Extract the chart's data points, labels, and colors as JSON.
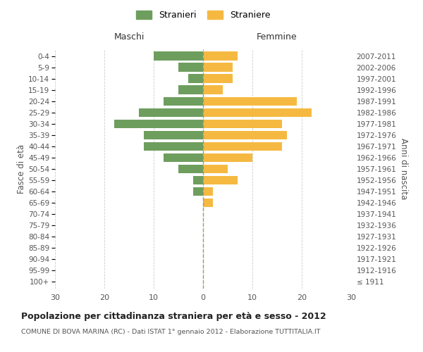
{
  "age_groups": [
    "100+",
    "95-99",
    "90-94",
    "85-89",
    "80-84",
    "75-79",
    "70-74",
    "65-69",
    "60-64",
    "55-59",
    "50-54",
    "45-49",
    "40-44",
    "35-39",
    "30-34",
    "25-29",
    "20-24",
    "15-19",
    "10-14",
    "5-9",
    "0-4"
  ],
  "birth_years": [
    "≤ 1911",
    "1912-1916",
    "1917-1921",
    "1922-1926",
    "1927-1931",
    "1932-1936",
    "1937-1941",
    "1942-1946",
    "1947-1951",
    "1952-1956",
    "1957-1961",
    "1962-1966",
    "1967-1971",
    "1972-1976",
    "1977-1981",
    "1982-1986",
    "1987-1991",
    "1992-1996",
    "1997-2001",
    "2002-2006",
    "2007-2011"
  ],
  "males": [
    0,
    0,
    0,
    0,
    0,
    0,
    0,
    0,
    2,
    2,
    5,
    8,
    12,
    12,
    18,
    13,
    8,
    5,
    3,
    5,
    10
  ],
  "females": [
    0,
    0,
    0,
    0,
    0,
    0,
    0,
    2,
    2,
    7,
    5,
    10,
    16,
    17,
    16,
    22,
    19,
    4,
    6,
    6,
    7
  ],
  "male_color": "#6e9e5e",
  "female_color": "#f5b942",
  "center_line_color": "#999977",
  "grid_color": "#cccccc",
  "background_color": "#ffffff",
  "title": "Popolazione per cittadinanza straniera per età e sesso - 2012",
  "subtitle": "COMUNE DI BOVA MARINA (RC) - Dati ISTAT 1° gennaio 2012 - Elaborazione TUTTITALIA.IT",
  "xlabel_left": "Maschi",
  "xlabel_right": "Femmine",
  "ylabel_left": "Fasce di età",
  "ylabel_right": "Anni di nascita",
  "legend_male": "Stranieri",
  "legend_female": "Straniere",
  "xlim": 30
}
